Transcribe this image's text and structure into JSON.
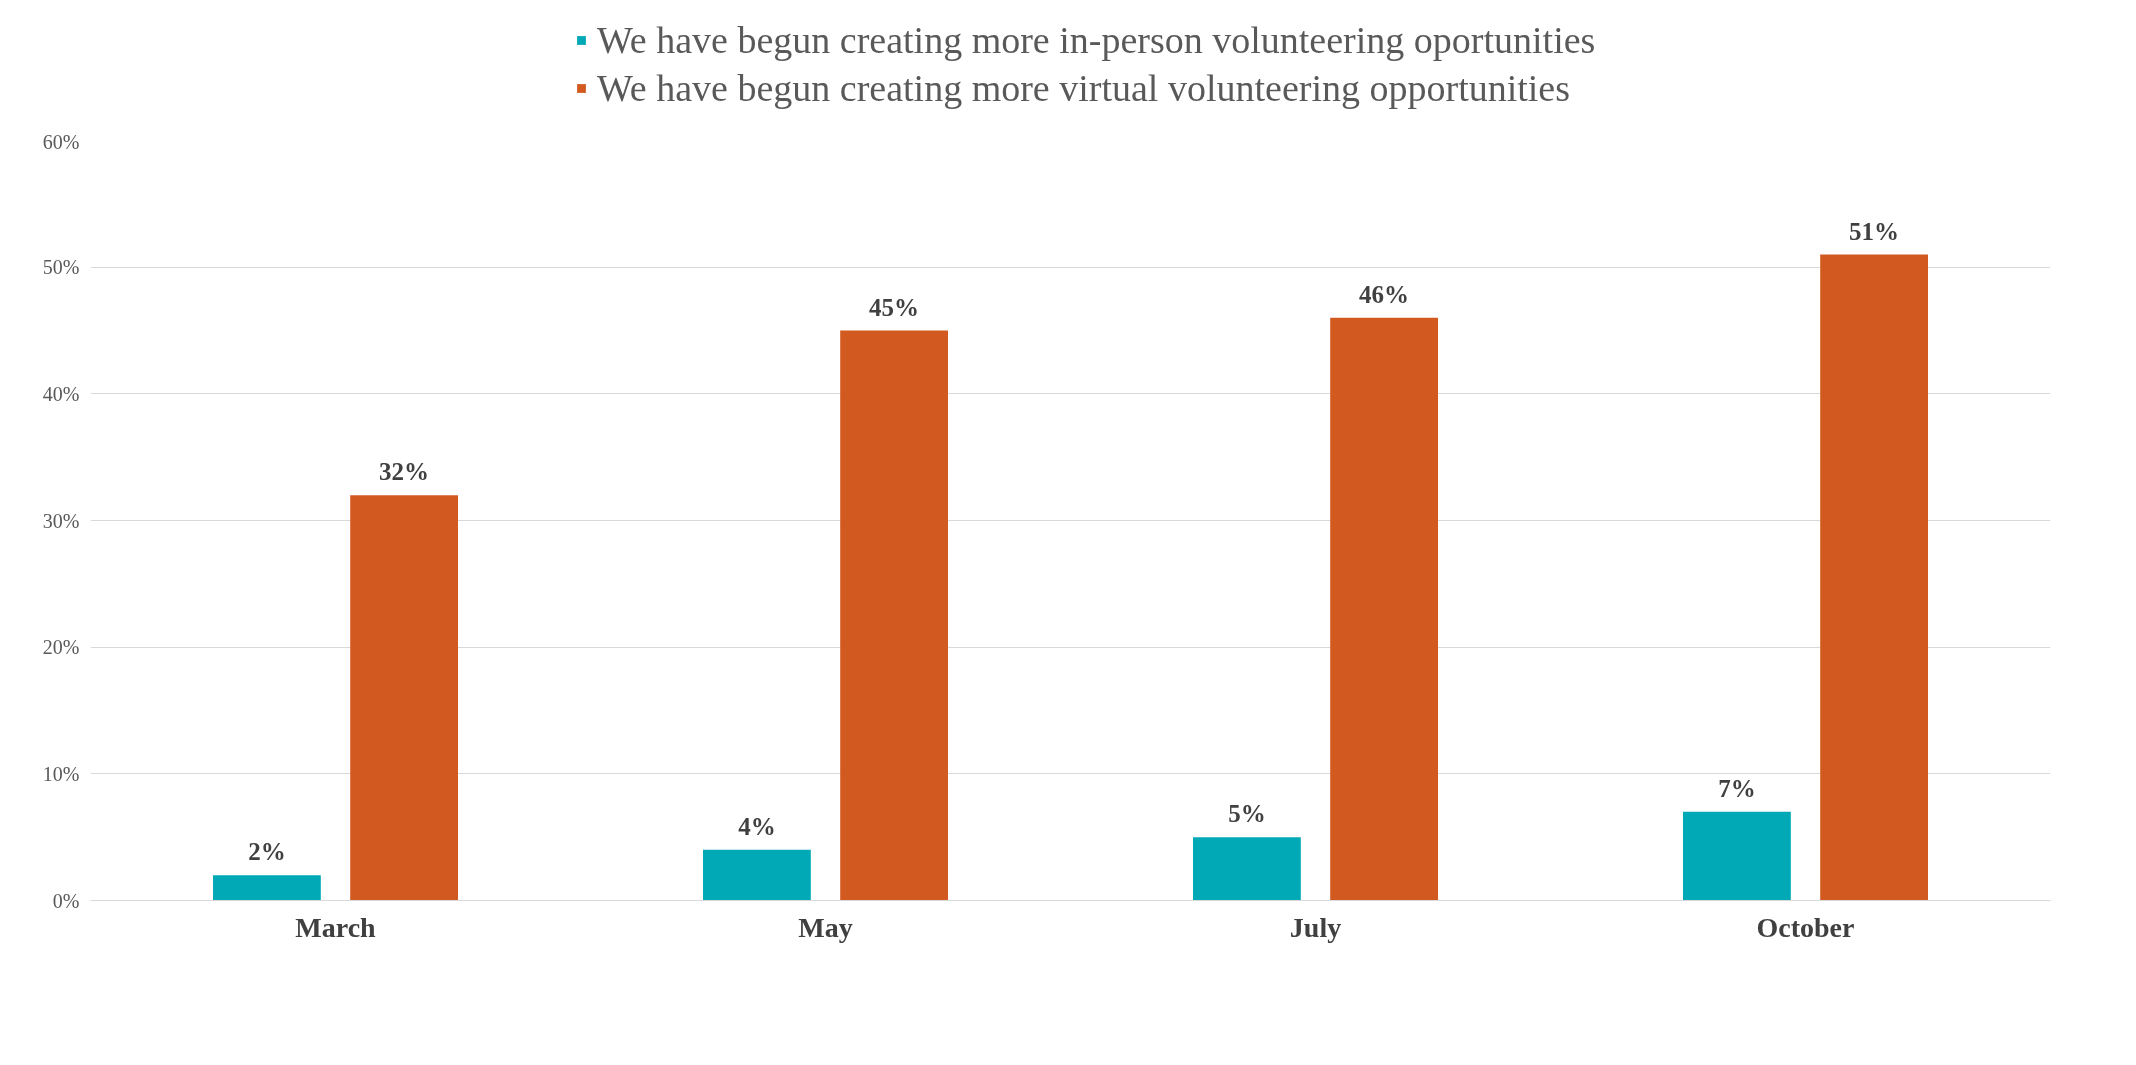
{
  "chart_data": {
    "type": "bar",
    "categories": [
      "March",
      "May",
      "July",
      "October"
    ],
    "series": [
      {
        "name": "We have begun creating more in-person volunteering oportunities",
        "color": "#00a9b5",
        "values": [
          2,
          4,
          5,
          7
        ],
        "value_labels": [
          "2%",
          "4%",
          "5%",
          "7%"
        ]
      },
      {
        "name": "We have begun creating more virtual volunteering opportunities",
        "color": "#d25a21",
        "values": [
          32,
          45,
          46,
          51
        ],
        "value_labels": [
          "32%",
          "45%",
          "46%",
          "51%"
        ]
      }
    ],
    "ylim": [
      0,
      60
    ],
    "yticks": [
      {
        "value": 0,
        "label": "0%"
      },
      {
        "value": 10,
        "label": "10%"
      },
      {
        "value": 20,
        "label": "20%"
      },
      {
        "value": 30,
        "label": "30%"
      },
      {
        "value": 40,
        "label": "40%"
      },
      {
        "value": 50,
        "label": "50%"
      },
      {
        "value": 60,
        "label": "60%"
      }
    ],
    "grid": "y",
    "legend": "top"
  }
}
